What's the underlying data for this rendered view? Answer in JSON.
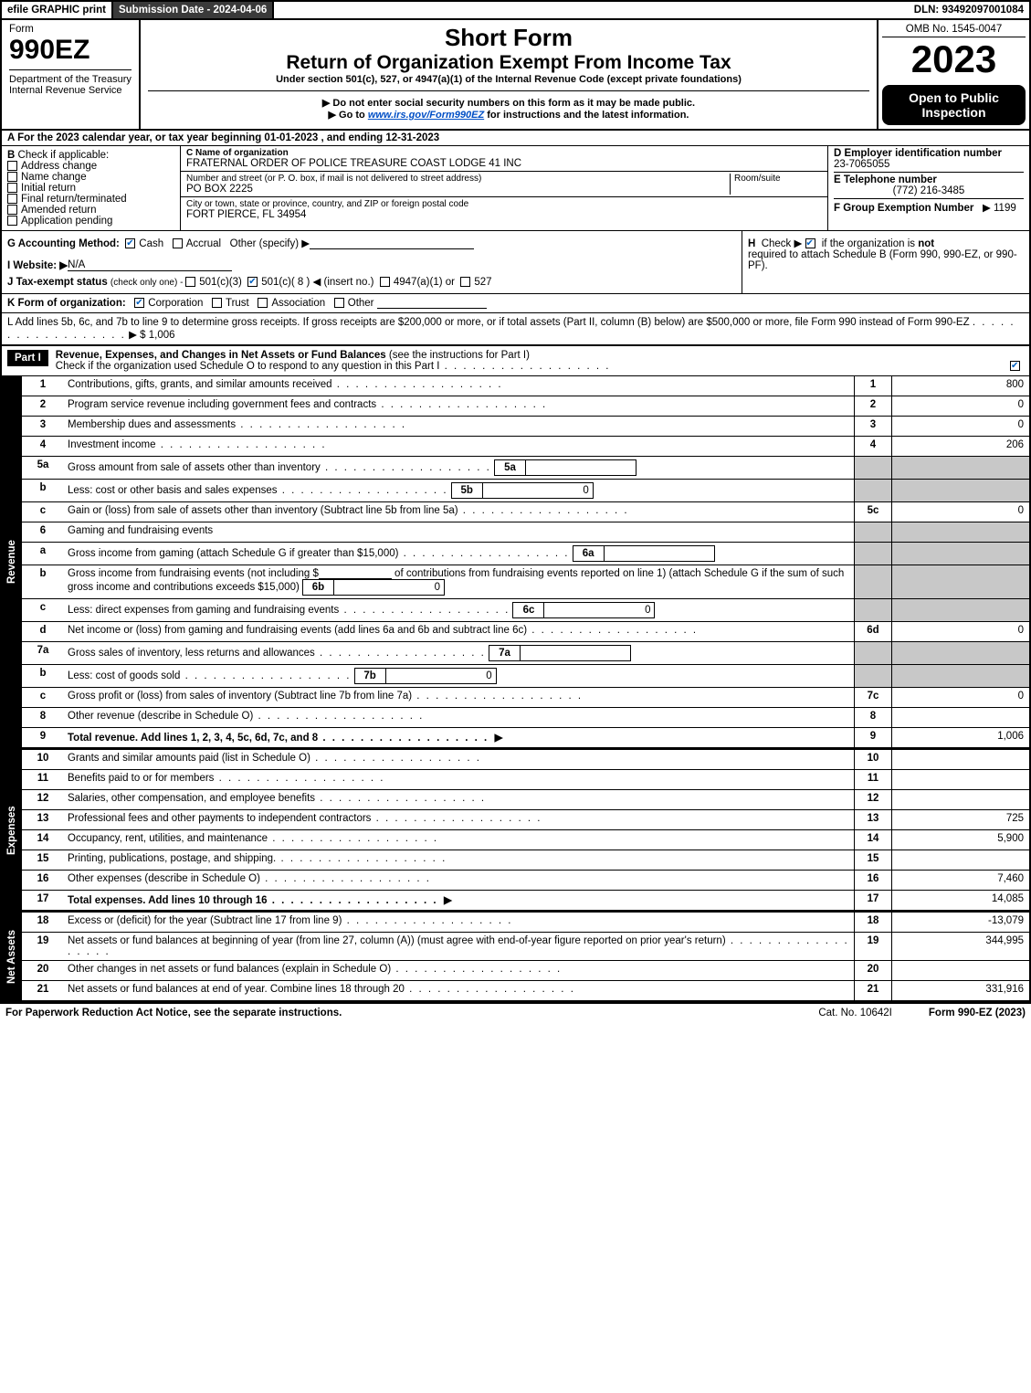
{
  "topbar": {
    "efile": "efile GRAPHIC print",
    "subm": "Submission Date - 2024-04-06",
    "dln": "DLN: 93492097001084"
  },
  "header": {
    "form_word": "Form",
    "form_no": "990EZ",
    "dept": "Department of the Treasury\nInternal Revenue Service",
    "short_form": "Short Form",
    "roei": "Return of Organization Exempt From Income Tax",
    "under": "Under section 501(c), 527, or 4947(a)(1) of the Internal Revenue Code (except private foundations)",
    "do_not": "Do not enter social security numbers on this form as it may be made public.",
    "goto_pre": "Go to ",
    "goto_link": "www.irs.gov/Form990EZ",
    "goto_post": " for instructions and the latest information.",
    "omb": "OMB No. 1545-0047",
    "year": "2023",
    "open": "Open to Public Inspection"
  },
  "A": "A  For the 2023 calendar year, or tax year beginning 01-01-2023 , and ending 12-31-2023",
  "B": {
    "label": "B",
    "check_if": "Check if applicable:",
    "items": [
      "Address change",
      "Name change",
      "Initial return",
      "Final return/terminated",
      "Amended return",
      "Application pending"
    ]
  },
  "C": {
    "name_lbl": "C Name of organization",
    "name": "FRATERNAL ORDER OF POLICE TREASURE COAST LODGE 41 INC",
    "street_lbl": "Number and street (or P. O. box, if mail is not delivered to street address)",
    "street": "PO BOX 2225",
    "room_lbl": "Room/suite",
    "city_lbl": "City or town, state or province, country, and ZIP or foreign postal code",
    "city": "FORT PIERCE, FL  34954"
  },
  "D": {
    "lbl": "D Employer identification number",
    "val": "23-7065055"
  },
  "E": {
    "lbl": "E Telephone number",
    "val": "(772) 216-3485"
  },
  "F": {
    "lbl": "F Group Exemption Number",
    "arrow": "▶",
    "val": "1199"
  },
  "G": {
    "lbl": "G Accounting Method:",
    "cash": "Cash",
    "accrual": "Accrual",
    "other": "Other (specify) ▶"
  },
  "H": {
    "pre": "H",
    "check": "Check ▶",
    "txt": "if the organization is ",
    "not": "not",
    "rest": "required to attach Schedule B (Form 990, 990-EZ, or 990-PF)."
  },
  "I": {
    "lbl": "I Website: ▶",
    "val": "N/A"
  },
  "J": {
    "lbl": "J Tax-exempt status",
    "rest": "(check only one) - ",
    "o1": "501(c)(3)",
    "o2": "501(c)( 8 ) ◀ (insert no.)",
    "o3": "4947(a)(1) or",
    "o4": "527"
  },
  "K": {
    "lbl": "K Form of organization:",
    "o1": "Corporation",
    "o2": "Trust",
    "o3": "Association",
    "o4": "Other"
  },
  "L": {
    "txt": "L Add lines 5b, 6c, and 7b to line 9 to determine gross receipts. If gross receipts are $200,000 or more, or if total assets (Part II, column (B) below) are $500,000 or more, file Form 990 instead of Form 990-EZ",
    "arrow": "▶ $",
    "val": "1,006"
  },
  "partI": {
    "bar": "Part I",
    "title": "Revenue, Expenses, and Changes in Net Assets or Fund Balances",
    "instr": "(see the instructions for Part I)",
    "check": "Check if the organization used Schedule O to respond to any question in this Part I"
  },
  "revenue_label": "Revenue",
  "expenses_label": "Expenses",
  "netassets_label": "Net Assets",
  "lines": {
    "1": {
      "n": "1",
      "d": "Contributions, gifts, grants, and similar amounts received",
      "col": "1",
      "v": "800"
    },
    "2": {
      "n": "2",
      "d": "Program service revenue including government fees and contracts",
      "col": "2",
      "v": "0"
    },
    "3": {
      "n": "3",
      "d": "Membership dues and assessments",
      "col": "3",
      "v": "0"
    },
    "4": {
      "n": "4",
      "d": "Investment income",
      "col": "4",
      "v": "206"
    },
    "5a": {
      "n": "5a",
      "d": "Gross amount from sale of assets other than inventory",
      "sb": "5a",
      "sbv": ""
    },
    "5b": {
      "n": "b",
      "d": "Less: cost or other basis and sales expenses",
      "sb": "5b",
      "sbv": "0"
    },
    "5c": {
      "n": "c",
      "d": "Gain or (loss) from sale of assets other than inventory (Subtract line 5b from line 5a)",
      "col": "5c",
      "v": "0"
    },
    "6": {
      "n": "6",
      "d": "Gaming and fundraising events"
    },
    "6a": {
      "n": "a",
      "d": "Gross income from gaming (attach Schedule G if greater than $15,000)",
      "sb": "6a",
      "sbv": ""
    },
    "6b": {
      "n": "b",
      "d1": "Gross income from fundraising events (not including $",
      "d2": "of contributions from fundraising events reported on line 1) (attach Schedule G if the sum of such gross income and contributions exceeds $15,000)",
      "sb": "6b",
      "sbv": "0"
    },
    "6c": {
      "n": "c",
      "d": "Less: direct expenses from gaming and fundraising events",
      "sb": "6c",
      "sbv": "0"
    },
    "6d": {
      "n": "d",
      "d": "Net income or (loss) from gaming and fundraising events (add lines 6a and 6b and subtract line 6c)",
      "col": "6d",
      "v": "0"
    },
    "7a": {
      "n": "7a",
      "d": "Gross sales of inventory, less returns and allowances",
      "sb": "7a",
      "sbv": ""
    },
    "7b": {
      "n": "b",
      "d": "Less: cost of goods sold",
      "sb": "7b",
      "sbv": "0"
    },
    "7c": {
      "n": "c",
      "d": "Gross profit or (loss) from sales of inventory (Subtract line 7b from line 7a)",
      "col": "7c",
      "v": "0"
    },
    "8": {
      "n": "8",
      "d": "Other revenue (describe in Schedule O)",
      "col": "8",
      "v": ""
    },
    "9": {
      "n": "9",
      "d": "Total revenue. Add lines 1, 2, 3, 4, 5c, 6d, 7c, and 8",
      "arrow": "▶",
      "col": "9",
      "v": "1,006",
      "bold": true
    },
    "10": {
      "n": "10",
      "d": "Grants and similar amounts paid (list in Schedule O)",
      "col": "10",
      "v": ""
    },
    "11": {
      "n": "11",
      "d": "Benefits paid to or for members",
      "col": "11",
      "v": ""
    },
    "12": {
      "n": "12",
      "d": "Salaries, other compensation, and employee benefits",
      "col": "12",
      "v": ""
    },
    "13": {
      "n": "13",
      "d": "Professional fees and other payments to independent contractors",
      "col": "13",
      "v": "725"
    },
    "14": {
      "n": "14",
      "d": "Occupancy, rent, utilities, and maintenance",
      "col": "14",
      "v": "5,900"
    },
    "15": {
      "n": "15",
      "d": "Printing, publications, postage, and shipping.",
      "col": "15",
      "v": ""
    },
    "16": {
      "n": "16",
      "d": "Other expenses (describe in Schedule O)",
      "col": "16",
      "v": "7,460"
    },
    "17": {
      "n": "17",
      "d": "Total expenses. Add lines 10 through 16",
      "arrow": "▶",
      "col": "17",
      "v": "14,085",
      "bold": true
    },
    "18": {
      "n": "18",
      "d": "Excess or (deficit) for the year (Subtract line 17 from line 9)",
      "col": "18",
      "v": "-13,079"
    },
    "19": {
      "n": "19",
      "d": "Net assets or fund balances at beginning of year (from line 27, column (A)) (must agree with end-of-year figure reported on prior year's return)",
      "col": "19",
      "v": "344,995"
    },
    "20": {
      "n": "20",
      "d": "Other changes in net assets or fund balances (explain in Schedule O)",
      "col": "20",
      "v": ""
    },
    "21": {
      "n": "21",
      "d": "Net assets or fund balances at end of year. Combine lines 18 through 20",
      "col": "21",
      "v": "331,916"
    }
  },
  "footer": {
    "left": "For Paperwork Reduction Act Notice, see the separate instructions.",
    "mid": "Cat. No. 10642I",
    "right_pre": "Form ",
    "right_b": "990-EZ",
    "right_post": " (2023)"
  }
}
